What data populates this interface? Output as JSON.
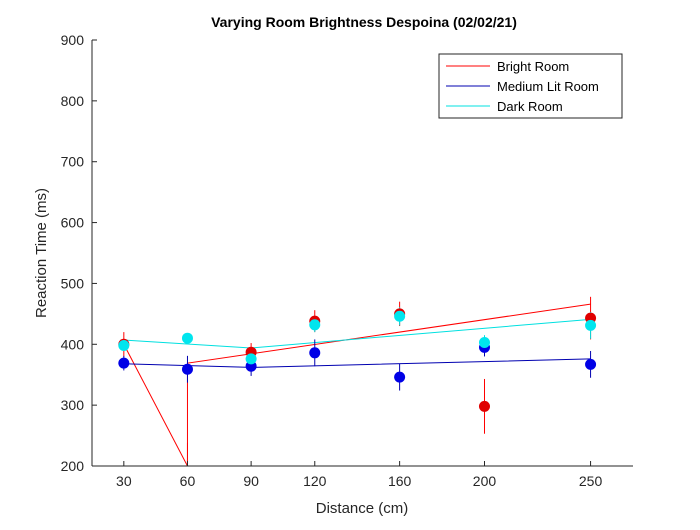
{
  "chart_data": {
    "type": "scatter",
    "title": "Varying Room Brightness Despoina (02/02/21)",
    "xlabel": "Distance (cm)",
    "ylabel": "Reaction Time (ms)",
    "xticks": [
      30,
      60,
      90,
      120,
      160,
      200,
      250
    ],
    "xlim": [
      15,
      270
    ],
    "ylim": [
      200,
      900
    ],
    "yticks": [
      200,
      300,
      400,
      500,
      600,
      700,
      800,
      900
    ],
    "grid": false,
    "legend_position": "top-right",
    "series": [
      {
        "name": "Bright Room",
        "color": "#ff0000",
        "marker_color": "#e00000",
        "x": [
          30,
          60,
          90,
          120,
          160,
          200,
          250
        ],
        "y": [
          400,
          183,
          387,
          438,
          450,
          298,
          443
        ],
        "err": [
          20,
          55,
          15,
          18,
          20,
          45,
          35
        ],
        "fit_line": [
          [
            30,
            400
          ],
          [
            60,
            200
          ],
          [
            60,
            369
          ],
          [
            250,
            466
          ]
        ]
      },
      {
        "name": "Medium Lit Room",
        "color": "#0000b0",
        "marker_color": "#0000e6",
        "x": [
          30,
          60,
          90,
          120,
          160,
          200,
          250
        ],
        "y": [
          369,
          359,
          364,
          386,
          346,
          395,
          367
        ],
        "err": [
          12,
          22,
          16,
          22,
          22,
          15,
          22
        ],
        "fit_line": [
          [
            30,
            368
          ],
          [
            90,
            362
          ],
          [
            250,
            376
          ]
        ]
      },
      {
        "name": "Dark Room",
        "color": "#00e0e0",
        "marker_color": "#00e5ee",
        "x": [
          30,
          60,
          90,
          120,
          160,
          200,
          250
        ],
        "y": [
          398,
          410,
          376,
          432,
          446,
          403,
          431
        ],
        "err": [
          8,
          8,
          10,
          12,
          15,
          12,
          22
        ],
        "fit_line": [
          [
            30,
            407
          ],
          [
            90,
            394
          ],
          [
            250,
            441
          ]
        ]
      }
    ]
  }
}
